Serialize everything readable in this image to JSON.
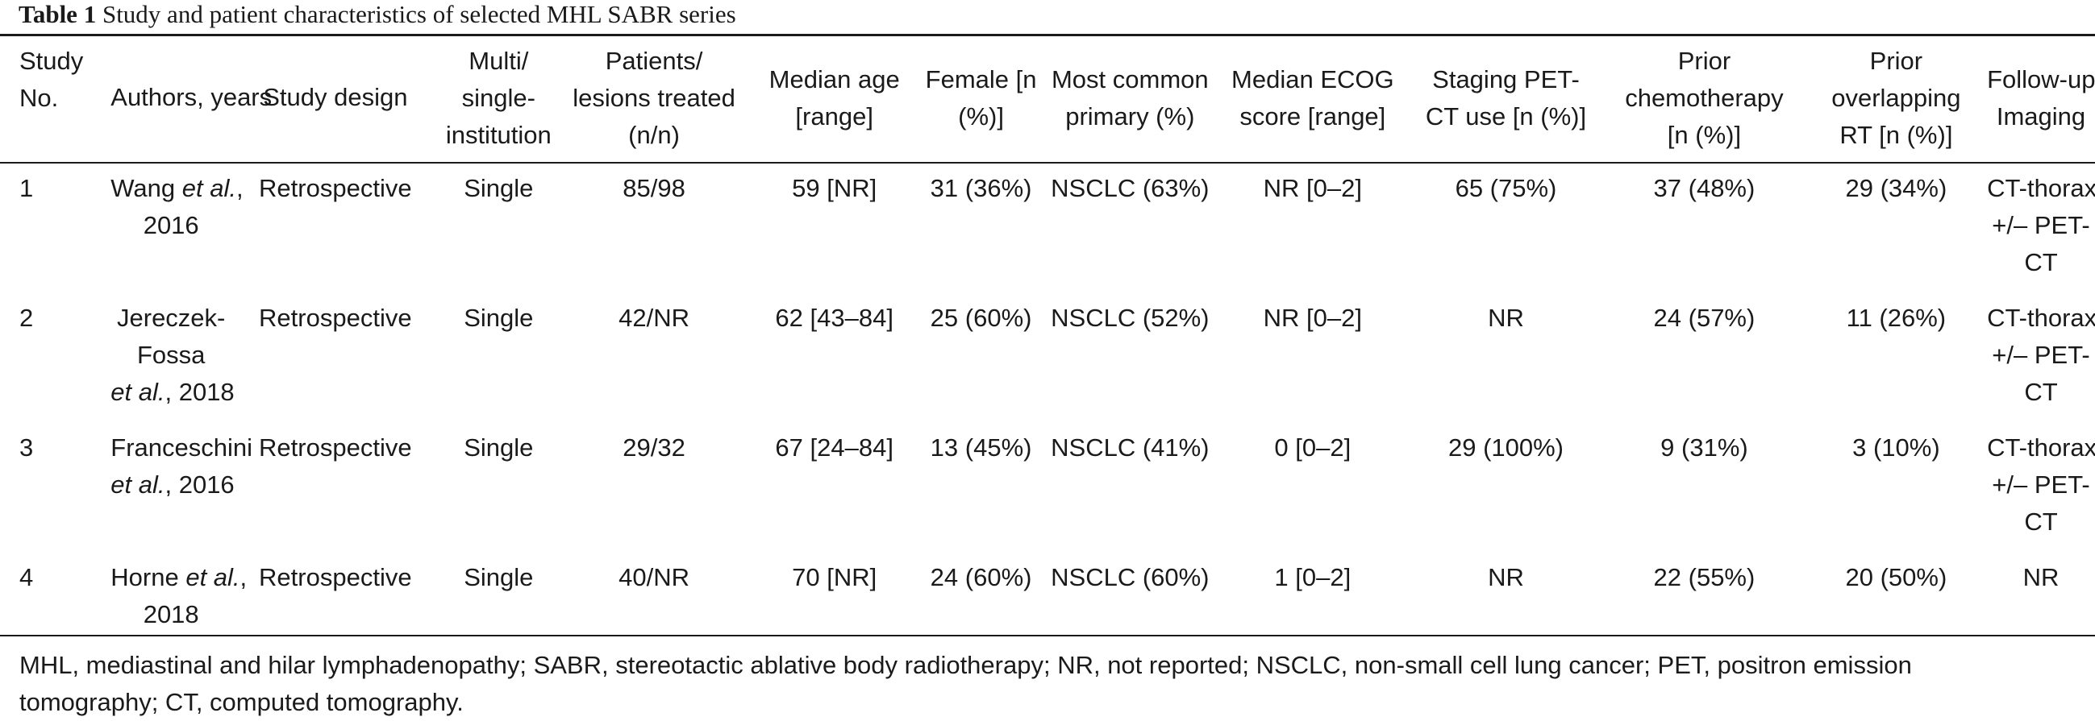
{
  "caption": {
    "label": "Table 1",
    "text": "Study and patient characteristics of selected MHL SABR series"
  },
  "headers": {
    "study_no": [
      "Study",
      "No."
    ],
    "authors": [
      "Authors, years"
    ],
    "design": [
      "Study design"
    ],
    "multi": [
      "Multi/",
      "single-",
      "institution"
    ],
    "patients": [
      "Patients/",
      "lesions treated",
      "(n/n)"
    ],
    "age": [
      "Median age",
      "[range]"
    ],
    "female": [
      "Female [n",
      "(%)]"
    ],
    "primary": [
      "Most common",
      "primary (%)"
    ],
    "ecog": [
      "Median ECOG",
      "score [range]"
    ],
    "staging": [
      "Staging PET-",
      "CT use [n (%)]"
    ],
    "chemo": [
      "Prior",
      "chemotherapy",
      "[n (%)]"
    ],
    "rt": [
      "Prior",
      "overlapping",
      "RT [n (%)]"
    ],
    "followup": [
      "Follow-up",
      "Imaging"
    ]
  },
  "rows": [
    {
      "no": "1",
      "authors": [
        "Wang",
        "et al.",
        ",",
        "2016"
      ],
      "design": "Retrospective",
      "multi": "Single",
      "patients": "85/98",
      "age": "59 [NR]",
      "female": "31 (36%)",
      "primary": "NSCLC (63%)",
      "ecog": "NR [0–2]",
      "staging": "65 (75%)",
      "chemo": "37 (48%)",
      "rt": "29 (34%)",
      "followup": [
        "CT-thorax",
        "+/– PET-",
        "CT"
      ]
    },
    {
      "no": "2",
      "authors": [
        "Jereczek-",
        "Fossa",
        "et al.",
        ", 2018"
      ],
      "design": "Retrospective",
      "multi": "Single",
      "patients": "42/NR",
      "age": "62 [43–84]",
      "female": "25 (60%)",
      "primary": "NSCLC (52%)",
      "ecog": "NR [0–2]",
      "staging": "NR",
      "chemo": "24 (57%)",
      "rt": "11 (26%)",
      "followup": [
        "CT-thorax",
        "+/– PET-",
        "CT"
      ]
    },
    {
      "no": "3",
      "authors": [
        "Franceschini",
        "et al.",
        ", 2016"
      ],
      "design": "Retrospective",
      "multi": "Single",
      "patients": "29/32",
      "age": "67 [24–84]",
      "female": "13 (45%)",
      "primary": "NSCLC (41%)",
      "ecog": "0 [0–2]",
      "staging": "29 (100%)",
      "chemo": "9 (31%)",
      "rt": "3 (10%)",
      "followup": [
        "CT-thorax",
        "+/– PET-",
        "CT"
      ]
    },
    {
      "no": "4",
      "authors": [
        "Horne",
        "et al.",
        ",",
        "2018"
      ],
      "design": "Retrospective",
      "multi": "Single",
      "patients": "40/NR",
      "age": "70 [NR]",
      "female": "24 (60%)",
      "primary": "NSCLC (60%)",
      "ecog": "1 [0–2]",
      "staging": "NR",
      "chemo": "22 (55%)",
      "rt": "20 (50%)",
      "followup": [
        "NR"
      ]
    }
  ],
  "footnote": {
    "line1": "MHL, mediastinal and hilar lymphadenopathy; SABR, stereotactic ablative body radiotherapy; NR, not reported; NSCLC, non-small cell lung cancer; PET, positron emission",
    "line2": "tomography; CT, computed tomography."
  }
}
